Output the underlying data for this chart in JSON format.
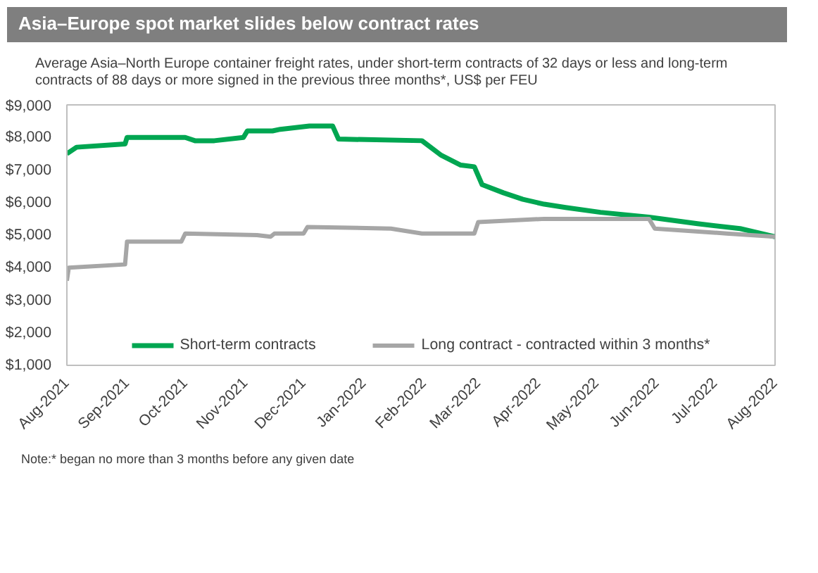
{
  "chart_data": {
    "type": "line",
    "title": "Asia–Europe spot market slides below contract rates",
    "subtitle": "Average Asia–North Europe container freight rates, under short-term contracts of 32 days or less and long-term contracts of 88 days or more signed in the previous three months*, US$ per FEU",
    "annotations": [
      "Note:* began no more than 3 months before any given date"
    ],
    "series": [
      {
        "name": "Short-term contracts",
        "color": "#00a651",
        "x": [
          "2021-08-01",
          "2021-08-06",
          "2021-08-31",
          "2021-09-01",
          "2021-10-01",
          "2021-10-06",
          "2021-10-16",
          "2021-10-31",
          "2021-11-02",
          "2021-11-15",
          "2021-11-19",
          "2021-12-04",
          "2021-12-16",
          "2021-12-19",
          "2022-01-31",
          "2022-02-10",
          "2022-02-20",
          "2022-02-27",
          "2022-03-03",
          "2022-03-14",
          "2022-03-24",
          "2022-04-04",
          "2022-04-15",
          "2022-05-03",
          "2022-05-28",
          "2022-06-22",
          "2022-07-14",
          "2022-08-01"
        ],
        "values": [
          7500,
          7700,
          7800,
          8000,
          8000,
          7900,
          7900,
          8000,
          8200,
          8200,
          8250,
          8350,
          8350,
          7950,
          7900,
          7450,
          7150,
          7100,
          6550,
          6300,
          6100,
          5950,
          5850,
          5700,
          5550,
          5350,
          5200,
          4950
        ]
      },
      {
        "name": "Long contract - contracted within 3 months*",
        "color": "#a6a6a6",
        "x": [
          "2021-08-01",
          "2021-08-02",
          "2021-08-31",
          "2021-09-01",
          "2021-09-29",
          "2021-10-01",
          "2021-11-07",
          "2021-11-14",
          "2021-11-16",
          "2021-12-01",
          "2021-12-03",
          "2022-01-15",
          "2022-01-31",
          "2022-02-27",
          "2022-03-01",
          "2022-04-04",
          "2022-05-28",
          "2022-05-31",
          "2022-07-07",
          "2022-08-01"
        ],
        "values": [
          3600,
          4000,
          4100,
          4800,
          4800,
          5050,
          5000,
          4950,
          5050,
          5050,
          5250,
          5200,
          5050,
          5050,
          5400,
          5500,
          5500,
          5200,
          5050,
          4950
        ]
      }
    ],
    "xlim": [
      "2021-08-01",
      "2022-08-01"
    ],
    "xticks": [
      {
        "value": "2021-08-01",
        "label": "Aug-2021"
      },
      {
        "value": "2021-09-01",
        "label": "Sep-2021"
      },
      {
        "value": "2021-10-01",
        "label": "Oct-2021"
      },
      {
        "value": "2021-11-01",
        "label": "Nov-2021"
      },
      {
        "value": "2021-12-01",
        "label": "Dec-2021"
      },
      {
        "value": "2022-01-01",
        "label": "Jan-2022"
      },
      {
        "value": "2022-02-01",
        "label": "Feb-2022"
      },
      {
        "value": "2022-03-01",
        "label": "Mar-2022"
      },
      {
        "value": "2022-04-01",
        "label": "Apr-2022"
      },
      {
        "value": "2022-05-01",
        "label": "May-2022"
      },
      {
        "value": "2022-06-01",
        "label": "Jun-2022"
      },
      {
        "value": "2022-07-01",
        "label": "Jul-2022"
      },
      {
        "value": "2022-08-01",
        "label": "Aug-2022"
      }
    ],
    "ylim": [
      1000,
      9000
    ],
    "yticks": [
      {
        "value": 1000,
        "label": "$1,000"
      },
      {
        "value": 2000,
        "label": "$2,000"
      },
      {
        "value": 3000,
        "label": "$3,000"
      },
      {
        "value": 4000,
        "label": "$4,000"
      },
      {
        "value": 5000,
        "label": "$5,000"
      },
      {
        "value": 6000,
        "label": "$6,000"
      },
      {
        "value": 7000,
        "label": "$7,000"
      },
      {
        "value": 8000,
        "label": "$8,000"
      },
      {
        "value": 9000,
        "label": "$9,000"
      }
    ],
    "grid": false,
    "legend": "bottom",
    "marker": "none",
    "line_style": "solid"
  }
}
